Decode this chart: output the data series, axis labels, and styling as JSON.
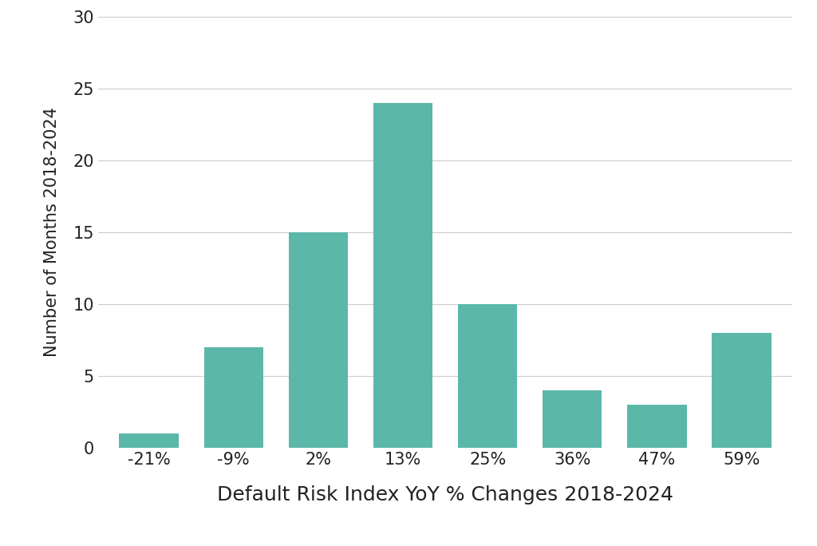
{
  "categories": [
    "-21%",
    "-9%",
    "2%",
    "13%",
    "25%",
    "36%",
    "47%",
    "59%"
  ],
  "values": [
    1,
    7,
    15,
    24,
    10,
    4,
    3,
    8
  ],
  "bar_color": "#5BB8A8",
  "bar_edgecolor": "none",
  "xlabel": "Default Risk Index YoY % Changes 2018-2024",
  "ylabel": "Number of Months 2018-2024",
  "ylim": [
    0,
    30
  ],
  "yticks": [
    0,
    5,
    10,
    15,
    20,
    25,
    30
  ],
  "xlabel_fontsize": 18,
  "ylabel_fontsize": 15,
  "tick_fontsize": 15,
  "background_color": "#ffffff",
  "grid_color": "#cccccc",
  "bar_width": 0.7,
  "text_color": "#222222"
}
